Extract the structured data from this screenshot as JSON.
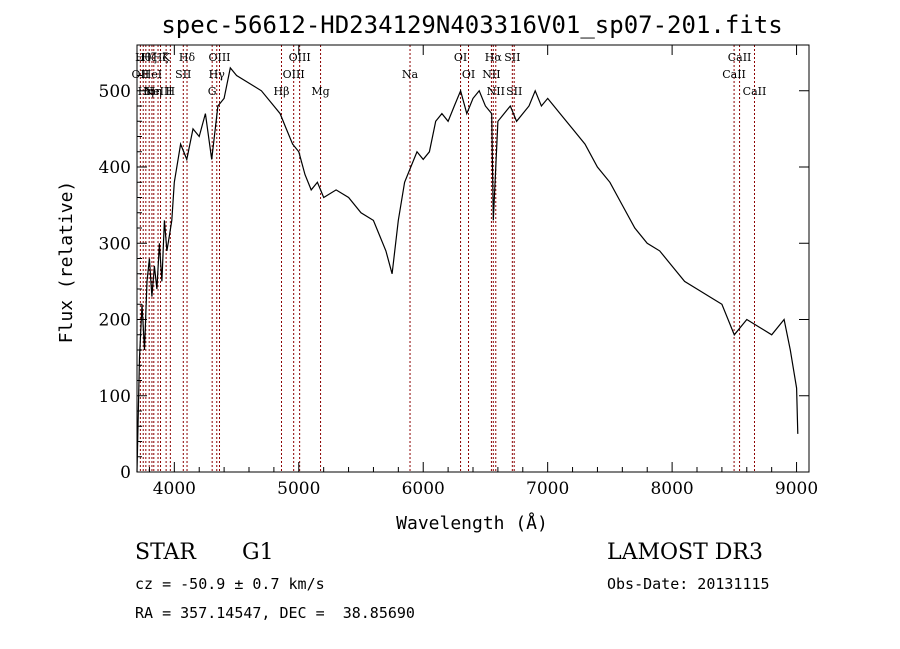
{
  "chart_data": {
    "type": "line",
    "title": "spec-56612-HD234129N403316V01_sp07-201.fits",
    "xlabel": "Wavelength (Å)",
    "ylabel": "Flux (relative)",
    "xlim": [
      3700,
      9100
    ],
    "ylim": [
      0,
      560
    ],
    "x_ticks": [
      4000,
      5000,
      6000,
      7000,
      8000,
      9000
    ],
    "y_ticks": [
      0,
      100,
      200,
      300,
      400,
      500
    ],
    "grid": false,
    "line_color": "#000000",
    "marker_color": "#8b0000",
    "series": [
      {
        "x": [
          3700,
          3720,
          3740,
          3760,
          3780,
          3800,
          3820,
          3840,
          3860,
          3880,
          3900,
          3920,
          3940,
          3960,
          3980,
          4000,
          4050,
          4100,
          4150,
          4200,
          4250,
          4300,
          4350,
          4400,
          4450,
          4500,
          4600,
          4700,
          4800,
          4850,
          4900,
          4950,
          5000,
          5050,
          5100,
          5150,
          5200,
          5300,
          5400,
          5500,
          5600,
          5700,
          5750,
          5800,
          5850,
          5900,
          5950,
          6000,
          6050,
          6100,
          6150,
          6200,
          6250,
          6300,
          6350,
          6400,
          6450,
          6500,
          6550,
          6563,
          6600,
          6650,
          6700,
          6750,
          6800,
          6850,
          6900,
          6950,
          7000,
          7050,
          7100,
          7200,
          7300,
          7400,
          7500,
          7600,
          7700,
          7800,
          7900,
          8000,
          8100,
          8200,
          8300,
          8400,
          8500,
          8600,
          8700,
          8800,
          8900,
          8950,
          9000,
          9010
        ],
        "y": [
          0,
          150,
          220,
          160,
          250,
          280,
          230,
          270,
          240,
          300,
          250,
          330,
          290,
          310,
          330,
          380,
          430,
          410,
          450,
          440,
          470,
          410,
          480,
          490,
          530,
          520,
          510,
          500,
          480,
          470,
          450,
          430,
          420,
          390,
          370,
          380,
          360,
          370,
          360,
          340,
          330,
          290,
          260,
          330,
          380,
          400,
          420,
          410,
          420,
          460,
          470,
          460,
          480,
          500,
          470,
          490,
          500,
          480,
          470,
          330,
          460,
          470,
          480,
          460,
          470,
          480,
          500,
          480,
          490,
          480,
          470,
          450,
          430,
          400,
          380,
          350,
          320,
          300,
          290,
          270,
          250,
          240,
          230,
          220,
          180,
          200,
          190,
          180,
          200,
          160,
          110,
          50
        ]
      }
    ],
    "line_markers": [
      {
        "x": 3727,
        "label": "OII",
        "row": 1
      },
      {
        "x": 3750,
        "label": "Hθ",
        "row": 0
      },
      {
        "x": 3771,
        "label": "Hη",
        "row": 2
      },
      {
        "x": 3798,
        "label": "Hζ",
        "row": 0
      },
      {
        "x": 3820,
        "label": "HeI",
        "row": 1
      },
      {
        "x": 3835,
        "label": "Hη",
        "row": 2
      },
      {
        "x": 3869,
        "label": "NeIII",
        "row": 2
      },
      {
        "x": 3889,
        "label": "Hζ",
        "row": 0
      },
      {
        "x": 3934,
        "label": "K",
        "row": 0
      },
      {
        "x": 3968,
        "label": "H",
        "row": 2
      },
      {
        "x": 4072,
        "label": "SII",
        "row": 1
      },
      {
        "x": 4102,
        "label": "Hδ",
        "row": 0
      },
      {
        "x": 4304,
        "label": "G",
        "row": 2
      },
      {
        "x": 4341,
        "label": "Hγ",
        "row": 1
      },
      {
        "x": 4363,
        "label": "OIII",
        "row": 0
      },
      {
        "x": 4861,
        "label": "Hβ",
        "row": 2
      },
      {
        "x": 4959,
        "label": "OIII",
        "row": 1
      },
      {
        "x": 5007,
        "label": "OIII",
        "row": 0
      },
      {
        "x": 5175,
        "label": "Mg",
        "row": 2
      },
      {
        "x": 5894,
        "label": "Na",
        "row": 1
      },
      {
        "x": 6300,
        "label": "OI",
        "row": 0
      },
      {
        "x": 6364,
        "label": "OI",
        "row": 1
      },
      {
        "x": 6548,
        "label": "NII",
        "row": 1
      },
      {
        "x": 6563,
        "label": "Hα",
        "row": 0
      },
      {
        "x": 6583,
        "label": "NII",
        "row": 2
      },
      {
        "x": 6716,
        "label": "SII",
        "row": 0
      },
      {
        "x": 6731,
        "label": "SII",
        "row": 2
      },
      {
        "x": 8498,
        "label": "CaII",
        "row": 1
      },
      {
        "x": 8542,
        "label": "CaII",
        "row": 0
      },
      {
        "x": 8662,
        "label": "CaII",
        "row": 2
      }
    ]
  },
  "info": {
    "class_label": "STAR",
    "subclass_label": "G1",
    "survey": "LAMOST DR3",
    "redshift": "cz = -50.9 ± 0.7 km/s",
    "obs_date": "Obs-Date: 20131115",
    "coords": "RA = 357.14547, DEC =  38.85690"
  }
}
